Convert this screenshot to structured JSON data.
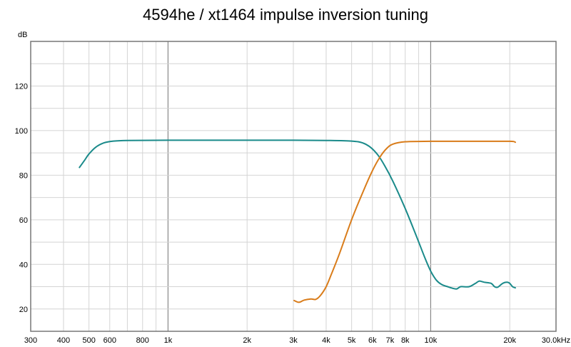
{
  "chart_data": {
    "type": "line",
    "title": "4594he / xt1464 impulse inversion tuning",
    "ylabel": "dB",
    "xlabel": "",
    "x_scale": "log",
    "xlim": [
      300,
      30000
    ],
    "ylim": [
      10,
      140
    ],
    "grid": true,
    "x_ticks": [
      {
        "value": 300,
        "label": "300"
      },
      {
        "value": 400,
        "label": "400"
      },
      {
        "value": 500,
        "label": "500"
      },
      {
        "value": 600,
        "label": "600"
      },
      {
        "value": 800,
        "label": "800"
      },
      {
        "value": 1000,
        "label": "1k"
      },
      {
        "value": 2000,
        "label": "2k"
      },
      {
        "value": 3000,
        "label": "3k"
      },
      {
        "value": 4000,
        "label": "4k"
      },
      {
        "value": 5000,
        "label": "5k"
      },
      {
        "value": 6000,
        "label": "6k"
      },
      {
        "value": 7000,
        "label": "7k"
      },
      {
        "value": 8000,
        "label": "8k"
      },
      {
        "value": 10000,
        "label": "10k"
      },
      {
        "value": 20000,
        "label": "20k"
      },
      {
        "value": 30000,
        "label": "30.0kHz"
      }
    ],
    "y_ticks": [
      {
        "value": 20,
        "label": "20"
      },
      {
        "value": 40,
        "label": "40"
      },
      {
        "value": 60,
        "label": "60"
      },
      {
        "value": 80,
        "label": "80"
      },
      {
        "value": 100,
        "label": "100"
      },
      {
        "value": 120,
        "label": "120"
      }
    ],
    "series": [
      {
        "color": "#1a8a8a",
        "points": [
          [
            460,
            83.5
          ],
          [
            480,
            86.5
          ],
          [
            500,
            89.5
          ],
          [
            530,
            92.5
          ],
          [
            570,
            94.5
          ],
          [
            620,
            95.3
          ],
          [
            700,
            95.6
          ],
          [
            1000,
            95.7
          ],
          [
            2000,
            95.7
          ],
          [
            3000,
            95.7
          ],
          [
            4000,
            95.6
          ],
          [
            5000,
            95.3
          ],
          [
            5500,
            94.5
          ],
          [
            5900,
            92.5
          ],
          [
            6300,
            89
          ],
          [
            6700,
            84
          ],
          [
            7200,
            77
          ],
          [
            8000,
            65
          ],
          [
            8800,
            53
          ],
          [
            9500,
            43
          ],
          [
            10000,
            37
          ],
          [
            10500,
            33
          ],
          [
            11000,
            31
          ],
          [
            11600,
            30
          ],
          [
            12500,
            29
          ],
          [
            13000,
            30
          ],
          [
            14000,
            30
          ],
          [
            14800,
            31.5
          ],
          [
            15300,
            32.5
          ],
          [
            16000,
            32
          ],
          [
            17000,
            31.5
          ],
          [
            17500,
            30
          ],
          [
            18000,
            29.8
          ],
          [
            18800,
            31.5
          ],
          [
            19500,
            32
          ],
          [
            20000,
            31.5
          ],
          [
            20500,
            30
          ],
          [
            21000,
            29.5
          ]
        ]
      },
      {
        "color": "#d97c1a",
        "points": [
          [
            3020,
            23.8
          ],
          [
            3150,
            23
          ],
          [
            3300,
            24
          ],
          [
            3500,
            24.5
          ],
          [
            3650,
            24.3
          ],
          [
            3800,
            26
          ],
          [
            4000,
            30
          ],
          [
            4200,
            36
          ],
          [
            4500,
            45
          ],
          [
            5000,
            60
          ],
          [
            5500,
            72
          ],
          [
            6000,
            82
          ],
          [
            6400,
            88
          ],
          [
            6800,
            92
          ],
          [
            7200,
            94
          ],
          [
            8000,
            95
          ],
          [
            10000,
            95.2
          ],
          [
            15000,
            95.2
          ],
          [
            20000,
            95.2
          ],
          [
            21000,
            94.8
          ]
        ]
      }
    ]
  }
}
